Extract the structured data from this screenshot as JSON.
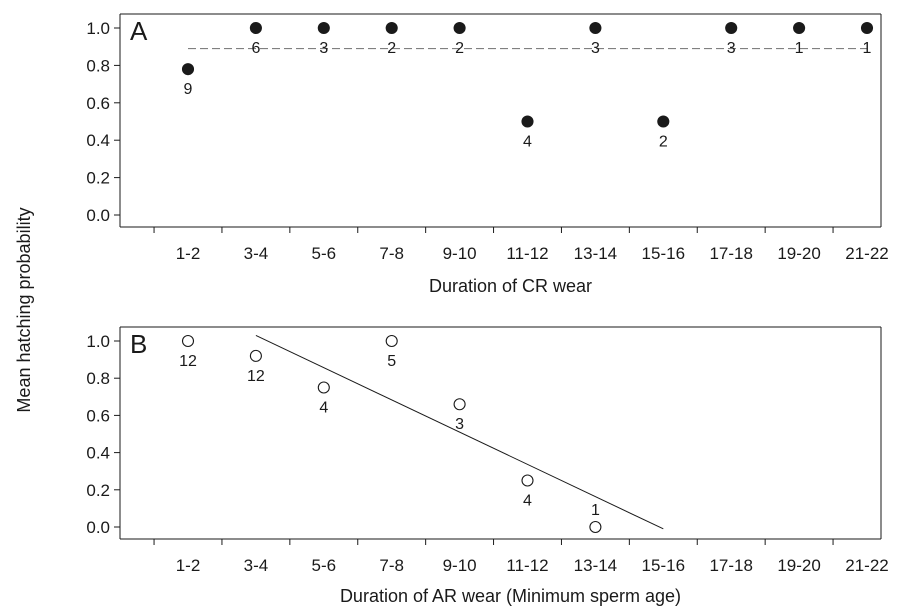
{
  "ylabel": "Mean hatching probability",
  "colors": {
    "axis": "#1a1a1a",
    "reference_line": "#808080",
    "fit_line": "#1a1a1a"
  },
  "chart_data": [
    {
      "type": "scatter",
      "panel": "A",
      "xlabel": "Duration of CR wear",
      "categories": [
        "1-2",
        "3-4",
        "5-6",
        "7-8",
        "9-10",
        "11-12",
        "13-14",
        "15-16",
        "17-18",
        "19-20",
        "21-22"
      ],
      "ylim": [
        0.0,
        1.0
      ],
      "yticks": [
        "0.0",
        "0.2",
        "0.4",
        "0.6",
        "0.8",
        "1.0"
      ],
      "grid": false,
      "marker": "filled-circle",
      "points": [
        {
          "x": "1-2",
          "y": 0.78,
          "n": "9"
        },
        {
          "x": "3-4",
          "y": 1.0,
          "n": "6"
        },
        {
          "x": "5-6",
          "y": 1.0,
          "n": "3"
        },
        {
          "x": "7-8",
          "y": 1.0,
          "n": "2"
        },
        {
          "x": "9-10",
          "y": 1.0,
          "n": "2"
        },
        {
          "x": "11-12",
          "y": 0.5,
          "n": "4"
        },
        {
          "x": "13-14",
          "y": 1.0,
          "n": "3"
        },
        {
          "x": "15-16",
          "y": 0.5,
          "n": "2"
        },
        {
          "x": "17-18",
          "y": 1.0,
          "n": "3"
        },
        {
          "x": "19-20",
          "y": 1.0,
          "n": "1"
        },
        {
          "x": "21-22",
          "y": 1.0,
          "n": "1"
        }
      ],
      "reference_line": {
        "style": "dashed",
        "y": 0.89,
        "from": "1-2",
        "to": "21-22"
      }
    },
    {
      "type": "scatter",
      "panel": "B",
      "xlabel": "Duration of AR wear (Minimum sperm age)",
      "categories": [
        "1-2",
        "3-4",
        "5-6",
        "7-8",
        "9-10",
        "11-12",
        "13-14",
        "15-16",
        "17-18",
        "19-20",
        "21-22"
      ],
      "ylim": [
        0.0,
        1.0
      ],
      "yticks": [
        "0.0",
        "0.2",
        "0.4",
        "0.6",
        "0.8",
        "1.0"
      ],
      "grid": false,
      "marker": "open-circle",
      "points": [
        {
          "x": "1-2",
          "y": 1.0,
          "n": "12"
        },
        {
          "x": "3-4",
          "y": 0.92,
          "n": "12"
        },
        {
          "x": "5-6",
          "y": 0.75,
          "n": "4"
        },
        {
          "x": "7-8",
          "y": 1.0,
          "n": "5"
        },
        {
          "x": "9-10",
          "y": 0.66,
          "n": "3"
        },
        {
          "x": "11-12",
          "y": 0.25,
          "n": "4"
        },
        {
          "x": "13-14",
          "y": 0.0,
          "n": "1"
        }
      ],
      "fit_line": {
        "style": "solid",
        "start": {
          "x": "3-4",
          "y": 1.03
        },
        "end": {
          "x": "15-16",
          "y": -0.01
        }
      }
    }
  ]
}
